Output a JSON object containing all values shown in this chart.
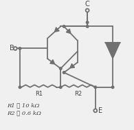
{
  "bg_color": "#f0f0f0",
  "line_color": "#707070",
  "text_color": "#404040",
  "lw": 1.3,
  "label_B": "B",
  "label_C": "C",
  "label_E": "E",
  "label_R1": "R1",
  "label_R2": "R2",
  "label_R1_val": "R1 ≅ 10 kΩ",
  "label_R2_val": "R2 ≅ 0.6 kΩ",
  "arrow_size": 5,
  "dot_r": 1.8,
  "open_r": 2.5
}
